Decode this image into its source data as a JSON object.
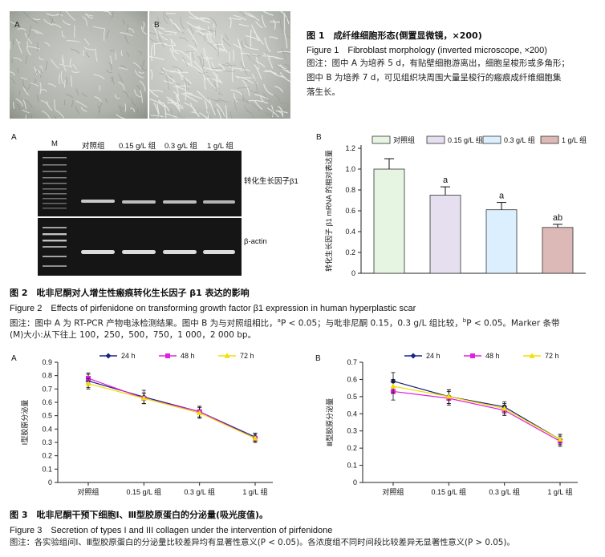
{
  "figure1": {
    "panel_a": "A",
    "panel_b": "B",
    "title_cn": "图 1　成纤维细胞形态(倒置显微镜，×200)",
    "title_en": "Figure 1　Fibroblast morphology (inverted microscope, ×200)",
    "note_line1": "图注：图中 A 为培养 5 d，有贴壁细胞游离出，细胞呈梭形或多角形；",
    "note_line2": "图中 B 为培养 7 d，可见组织块周围大量呈梭行的瘢痕成纤维细胞集",
    "note_line3": "落生长。"
  },
  "figure2": {
    "panel_a": "A",
    "panel_b": "B",
    "gel": {
      "lane_labels": [
        "M",
        "对照组",
        "0.15 g/L 组",
        "0.3 g/L 组",
        "1 g/L 组"
      ],
      "band_top_label": "转化生长因子β1",
      "band_bottom_label": "β-actin"
    },
    "title_cn": "图 2　吡非尼酮对人增生性瘢痕转化生长因子 β1 表达的影响",
    "title_en": "Figure 2　Effects of pirfenidone on transforming growth factor β1 expression in human hyperplastic scar",
    "note_line1": "图注：图中 A 为 RT-PCR 产物电泳检测结果。图中 B 为与对照组相比，",
    "note_line1_mid": "P < 0.05；与吡非尼酮 0.15，0.3 g/L 组比较，",
    "note_line1_end": "P < 0.05。Marker 条带",
    "note_sup_a": "a",
    "note_sup_b": "b",
    "note_line2": "(M)大小:从下往上 100，250，500，750，1 000，2 000 bp。"
  },
  "figure3": {
    "panel_a": "A",
    "panel_b": "B",
    "title_cn": "图 3　吡非尼酮干预下细胞Ⅰ、Ⅲ型胶原蛋白的分泌量(吸光度值)。",
    "title_en": "Figure 3　Secretion of types I and III collagen under the intervention of pirfenidone",
    "note_line1": "图注：各实验组间Ⅰ、Ⅲ型胶原蛋白的分泌量比较差异均有显著性意义(P < 0.05)。各浓度组不同时间段比较差异无显著性意义(P > 0.05)。"
  },
  "chart_data": [
    {
      "type": "bar",
      "panel": "B",
      "categories": [
        "对照组",
        "0.15 g/L 组",
        "0.3 g/L 组",
        "1 g/L 组"
      ],
      "values": [
        1.0,
        0.75,
        0.61,
        0.44
      ],
      "errors": [
        0.1,
        0.08,
        0.07,
        0.03
      ],
      "annotations": [
        "",
        "a",
        "a",
        "ab"
      ],
      "colors": [
        "#e6f5e1",
        "#e6dff0",
        "#dcefff",
        "#dcb8b6"
      ],
      "ylabel": "转化生长因子 β1 mRNA 的相对表达量",
      "ylim": [
        0,
        1.2
      ],
      "yticks": [
        "0",
        "0.2",
        "0.4",
        "0.6",
        "0.8",
        "1.0",
        "1.2"
      ],
      "legend": "top"
    },
    {
      "type": "line",
      "panel": "A",
      "categories": [
        "对照组",
        "0.15 g/L 组",
        "0.3 g/L 组",
        "1 g/L 组"
      ],
      "series": [
        {
          "name": "24 h",
          "values": [
            0.76,
            0.64,
            0.53,
            0.34
          ],
          "errors": [
            0.05,
            0.05,
            0.04,
            0.03
          ],
          "color": "#1a237e"
        },
        {
          "name": "48 h",
          "values": [
            0.78,
            0.63,
            0.53,
            0.33
          ],
          "errors": [
            0.04,
            0.04,
            0.04,
            0.03
          ],
          "color": "#e020e0"
        },
        {
          "name": "72 h",
          "values": [
            0.74,
            0.63,
            0.52,
            0.33
          ],
          "errors": [
            0.04,
            0.04,
            0.04,
            0.03
          ],
          "color": "#f0e000"
        }
      ],
      "ylabel": "Ⅰ型胶原分泌量",
      "ylim": [
        0,
        0.9
      ],
      "yticks": [
        "0",
        "0.1",
        "0.2",
        "0.3",
        "0.4",
        "0.5",
        "0.6",
        "0.7",
        "0.8",
        "0.9"
      ],
      "legend": "top"
    },
    {
      "type": "line",
      "panel": "B",
      "categories": [
        "对照组",
        "0.15 g/L 组",
        "0.3 g/L 组",
        "1 g/L 组"
      ],
      "series": [
        {
          "name": "24 h",
          "values": [
            0.59,
            0.5,
            0.44,
            0.25
          ],
          "errors": [
            0.05,
            0.04,
            0.03,
            0.03
          ],
          "color": "#1a237e"
        },
        {
          "name": "48 h",
          "values": [
            0.53,
            0.49,
            0.42,
            0.24
          ],
          "errors": [
            0.05,
            0.04,
            0.03,
            0.03
          ],
          "color": "#e020e0"
        },
        {
          "name": "72 h",
          "values": [
            0.56,
            0.5,
            0.43,
            0.25
          ],
          "errors": [
            0.04,
            0.04,
            0.03,
            0.03
          ],
          "color": "#f0e000"
        }
      ],
      "ylabel": "Ⅲ型胶原分泌量",
      "ylim": [
        0,
        0.7
      ],
      "yticks": [
        "0",
        "0.1",
        "0.2",
        "0.3",
        "0.4",
        "0.5",
        "0.6",
        "0.7"
      ],
      "legend": "top"
    }
  ]
}
